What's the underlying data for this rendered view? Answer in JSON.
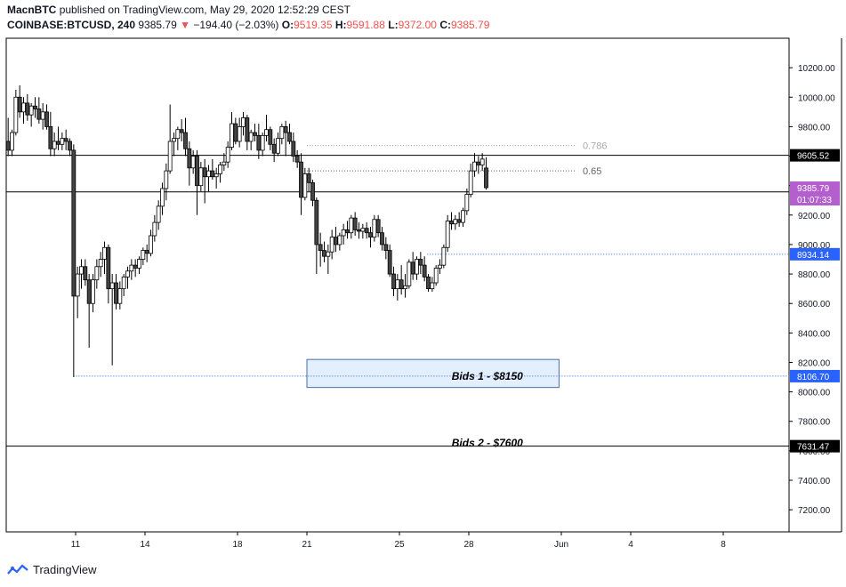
{
  "header": {
    "author": "MacnBTC",
    "published_text": "published on TradingView.com, May 29, 2020 12:52:29 CEST",
    "symbol": "COINBASE:BTCUSD, 240",
    "last": "9385.79",
    "change_arrow": "▼",
    "change": "−194.40 (−2.03%)",
    "o_label": "O:",
    "o_val": "9519.35",
    "h_label": "H:",
    "h_val": "9591.88",
    "l_label": "L:",
    "l_val": "9372.00",
    "c_label": "C:",
    "c_val": "9385.79"
  },
  "footer": {
    "brand": "TradingView"
  },
  "colors": {
    "down": "#ef5350",
    "blue": "#2962ff",
    "price_tag": "#b45fce",
    "box_fill": "#e3effd",
    "box_border": "#4a6fa5"
  },
  "chart_data": {
    "type": "candlestick",
    "ylim": [
      7050,
      10400
    ],
    "yticks": [
      "10200.00",
      "10000.00",
      "9800.00",
      "9600.00",
      "9400.00",
      "9200.00",
      "9000.00",
      "8800.00",
      "8600.00",
      "8400.00",
      "8200.00",
      "8000.00",
      "7800.00",
      "7600.00",
      "7400.00",
      "7200.00"
    ],
    "ytick_values": [
      10200,
      10000,
      9800,
      9600,
      9400,
      9200,
      9000,
      8800,
      8600,
      8400,
      8200,
      8000,
      7800,
      7600,
      7400,
      7200
    ],
    "xticks": [
      "11",
      "14",
      "18",
      "21",
      "25",
      "28",
      "Jun",
      "4",
      "8"
    ],
    "xtick_days": [
      11,
      14,
      18,
      21,
      25,
      28,
      32,
      35,
      39
    ],
    "x_start_day": 8,
    "candle_start_day": 8,
    "candle_hours": 4,
    "candles": [
      [
        9700,
        9860,
        9600,
        9640
      ],
      [
        9640,
        9780,
        9600,
        9760
      ],
      [
        9760,
        10050,
        9740,
        10000
      ],
      [
        10000,
        10080,
        9860,
        9900
      ],
      [
        9900,
        10000,
        9820,
        9960
      ],
      [
        9960,
        10020,
        9840,
        9880
      ],
      [
        9880,
        9960,
        9800,
        9940
      ],
      [
        9940,
        10000,
        9860,
        9920
      ],
      [
        9920,
        10000,
        9820,
        9850
      ],
      [
        9850,
        9960,
        9780,
        9900
      ],
      [
        9900,
        9950,
        9780,
        9800
      ],
      [
        9800,
        9900,
        9600,
        9650
      ],
      [
        9650,
        9760,
        9600,
        9700
      ],
      [
        9700,
        9800,
        9640,
        9680
      ],
      [
        9680,
        9760,
        9640,
        9720
      ],
      [
        9720,
        9780,
        9640,
        9700
      ],
      [
        9700,
        9720,
        9600,
        9640
      ],
      [
        9640,
        9680,
        8100,
        8650
      ],
      [
        8650,
        8850,
        8500,
        8800
      ],
      [
        8800,
        8900,
        8700,
        8850
      ],
      [
        8850,
        8900,
        8720,
        8760
      ],
      [
        8760,
        8800,
        8300,
        8600
      ],
      [
        8600,
        8800,
        8540,
        8760
      ],
      [
        8760,
        8900,
        8700,
        8850
      ],
      [
        8850,
        8950,
        8780,
        8900
      ],
      [
        8900,
        9020,
        8800,
        8980
      ],
      [
        8980,
        9000,
        8600,
        8700
      ],
      [
        8700,
        8800,
        8180,
        8740
      ],
      [
        8740,
        8800,
        8560,
        8600
      ],
      [
        8600,
        8750,
        8560,
        8700
      ],
      [
        8700,
        8800,
        8650,
        8780
      ],
      [
        8780,
        8850,
        8700,
        8820
      ],
      [
        8820,
        8900,
        8760,
        8860
      ],
      [
        8860,
        8900,
        8780,
        8840
      ],
      [
        8840,
        8920,
        8800,
        8900
      ],
      [
        8900,
        8980,
        8860,
        8960
      ],
      [
        8960,
        9000,
        8880,
        8940
      ],
      [
        8940,
        9100,
        8920,
        9060
      ],
      [
        9060,
        9200,
        9020,
        9150
      ],
      [
        9150,
        9300,
        9100,
        9260
      ],
      [
        9260,
        9420,
        9200,
        9380
      ],
      [
        9380,
        9550,
        9300,
        9500
      ],
      [
        9500,
        9950,
        9480,
        9700
      ],
      [
        9700,
        9760,
        9600,
        9720
      ],
      [
        9720,
        9800,
        9640,
        9780
      ],
      [
        9780,
        9850,
        9700,
        9760
      ],
      [
        9760,
        9860,
        9600,
        9650
      ],
      [
        9650,
        9700,
        9400,
        9520
      ],
      [
        9520,
        9640,
        9480,
        9600
      ],
      [
        9600,
        9640,
        9200,
        9400
      ],
      [
        9400,
        9560,
        9360,
        9520
      ],
      [
        9520,
        9580,
        9280,
        9460
      ],
      [
        9460,
        9540,
        9360,
        9500
      ],
      [
        9500,
        9580,
        9440,
        9460
      ],
      [
        9460,
        9520,
        9380,
        9480
      ],
      [
        9480,
        9560,
        9420,
        9540
      ],
      [
        9540,
        9620,
        9500,
        9560
      ],
      [
        9560,
        9700,
        9520,
        9660
      ],
      [
        9660,
        9900,
        9640,
        9820
      ],
      [
        9820,
        9860,
        9680,
        9700
      ],
      [
        9700,
        9860,
        9660,
        9800
      ],
      [
        9800,
        9900,
        9740,
        9860
      ],
      [
        9860,
        9880,
        9640,
        9700
      ],
      [
        9700,
        9780,
        9640,
        9760
      ],
      [
        9760,
        9820,
        9700,
        9740
      ],
      [
        9740,
        9820,
        9580,
        9640
      ],
      [
        9640,
        9760,
        9600,
        9740
      ],
      [
        9740,
        9880,
        9700,
        9780
      ],
      [
        9780,
        9800,
        9640,
        9680
      ],
      [
        9680,
        9720,
        9560,
        9620
      ],
      [
        9620,
        9760,
        9600,
        9720
      ],
      [
        9720,
        9820,
        9680,
        9800
      ],
      [
        9800,
        9840,
        9600,
        9760
      ],
      [
        9760,
        9820,
        9680,
        9700
      ],
      [
        9700,
        9760,
        9560,
        9600
      ],
      [
        9600,
        9640,
        9520,
        9560
      ],
      [
        9560,
        9620,
        9200,
        9320
      ],
      [
        9320,
        9520,
        9300,
        9480
      ],
      [
        9480,
        9520,
        9360,
        9420
      ],
      [
        9420,
        9440,
        9260,
        9300
      ],
      [
        9300,
        9320,
        8800,
        9000
      ],
      [
        9000,
        9080,
        8850,
        8960
      ],
      [
        8960,
        9020,
        8880,
        8920
      ],
      [
        8920,
        9000,
        8800,
        8950
      ],
      [
        8950,
        9100,
        8900,
        9050
      ],
      [
        9050,
        9120,
        8950,
        9000
      ],
      [
        9000,
        9080,
        8960,
        9060
      ],
      [
        9060,
        9140,
        9000,
        9100
      ],
      [
        9100,
        9160,
        9040,
        9080
      ],
      [
        9080,
        9200,
        9040,
        9180
      ],
      [
        9180,
        9220,
        9060,
        9100
      ],
      [
        9100,
        9150,
        9040,
        9090
      ],
      [
        9090,
        9140,
        9040,
        9110
      ],
      [
        9110,
        9150,
        9040,
        9080
      ],
      [
        9080,
        9120,
        8980,
        9050
      ],
      [
        9050,
        9200,
        9020,
        9170
      ],
      [
        9170,
        9200,
        9050,
        9080
      ],
      [
        9080,
        9120,
        8960,
        9000
      ],
      [
        9000,
        9050,
        8900,
        8960
      ],
      [
        8960,
        9000,
        8780,
        8800
      ],
      [
        8800,
        8850,
        8650,
        8700
      ],
      [
        8700,
        8800,
        8620,
        8760
      ],
      [
        8760,
        8860,
        8660,
        8700
      ],
      [
        8700,
        8800,
        8640,
        8720
      ],
      [
        8720,
        8900,
        8700,
        8880
      ],
      [
        8880,
        8950,
        8760,
        8800
      ],
      [
        8800,
        8920,
        8760,
        8900
      ],
      [
        8900,
        8950,
        8800,
        8860
      ],
      [
        8860,
        8920,
        8750,
        8780
      ],
      [
        8780,
        8800,
        8680,
        8700
      ],
      [
        8700,
        8780,
        8680,
        8740
      ],
      [
        8740,
        8860,
        8720,
        8840
      ],
      [
        8840,
        8900,
        8800,
        8860
      ],
      [
        8860,
        9000,
        8840,
        8980
      ],
      [
        8980,
        9200,
        8950,
        9160
      ],
      [
        9160,
        9220,
        9100,
        9140
      ],
      [
        9140,
        9200,
        9100,
        9170
      ],
      [
        9170,
        9220,
        9120,
        9150
      ],
      [
        9150,
        9250,
        9120,
        9230
      ],
      [
        9230,
        9380,
        9200,
        9340
      ],
      [
        9340,
        9550,
        9320,
        9500
      ],
      [
        9500,
        9620,
        9460,
        9560
      ],
      [
        9560,
        9600,
        9480,
        9540
      ],
      [
        9540,
        9620,
        9500,
        9580
      ],
      [
        9519.35,
        9591.88,
        9372.0,
        9385.79
      ]
    ],
    "lines": [
      {
        "price": 9605.52,
        "label": "9605.52",
        "style": "solid",
        "color": "#000000",
        "tag_bg": "#000000",
        "tag_fg": "#ffffff"
      },
      {
        "price": 9357.01,
        "label": "9357.01",
        "style": "solid",
        "color": "#000000",
        "tag_bg": "#000000",
        "tag_fg": "#ffffff"
      },
      {
        "price": 7631.47,
        "label": "7631.47",
        "style": "solid",
        "color": "#000000",
        "tag_bg": "#000000",
        "tag_fg": "#ffffff"
      },
      {
        "price": 8934.14,
        "label": "8934.14",
        "style": "dotted",
        "color": "#2962ff",
        "tag_bg": "#2962ff",
        "tag_fg": "#ffffff",
        "from_day": 26.2
      },
      {
        "price": 8106.7,
        "label": "8106.70",
        "style": "dotted",
        "color": "#2962ff",
        "tag_bg": "#2962ff",
        "tag_fg": "#ffffff",
        "from_day": 10.9
      }
    ],
    "fib": [
      {
        "level": "0.786",
        "price": 9672,
        "color": "#aaaaaa",
        "from_day": 21
      },
      {
        "level": "0.65",
        "price": 9500,
        "color": "#666666",
        "from_day": 21
      }
    ],
    "current_price": {
      "price": 9385.79,
      "label": "9385.79",
      "countdown": "01:07:33"
    },
    "box": {
      "from_day": 21,
      "to_day": 31.9,
      "top": 8220,
      "bottom": 8030
    },
    "annotations": [
      {
        "text": "Bids 1 - $8150",
        "day": 28.8,
        "price": 8106
      },
      {
        "text": "Bids 2 - $7600",
        "day": 28.8,
        "price": 7655
      }
    ]
  }
}
